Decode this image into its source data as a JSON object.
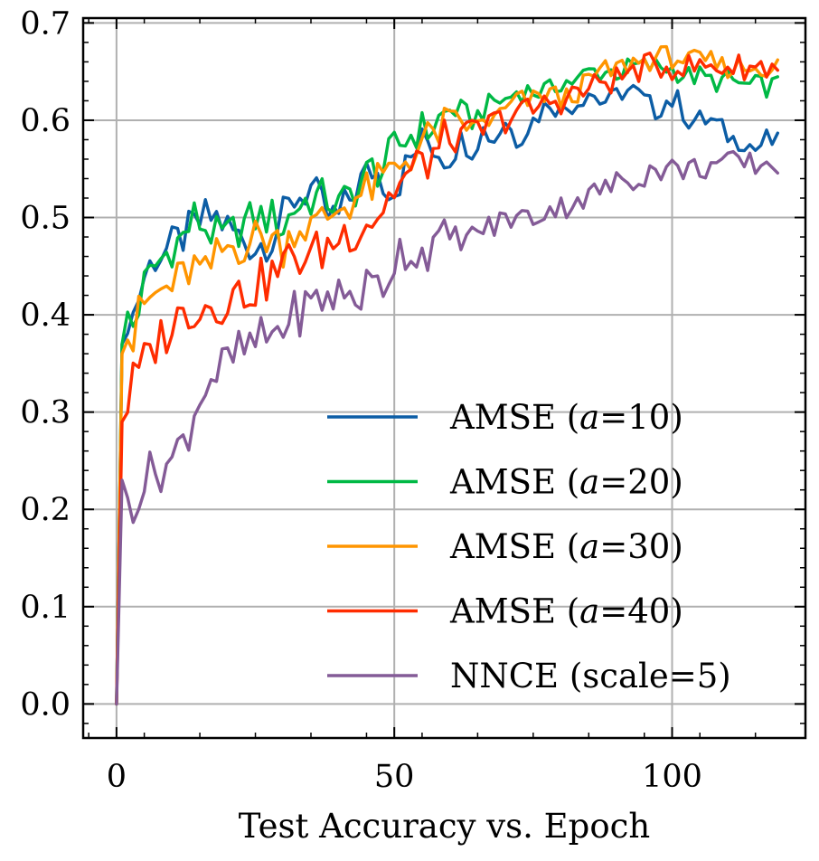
{
  "chart_data": {
    "type": "line",
    "title": "",
    "xlabel": "Test Accuracy vs. Epoch",
    "ylabel": "",
    "xlim": [
      -6,
      124
    ],
    "ylim": [
      -0.035,
      0.705
    ],
    "x_ticks": [
      0,
      50,
      100
    ],
    "x_tick_labels": [
      "0",
      "50",
      "100"
    ],
    "y_ticks": [
      0.0,
      0.1,
      0.2,
      0.3,
      0.4,
      0.5,
      0.6,
      0.7
    ],
    "y_tick_labels": [
      "0.0",
      "0.1",
      "0.2",
      "0.3",
      "0.4",
      "0.5",
      "0.6",
      "0.7"
    ],
    "grid": true,
    "legend_position": "lower-right",
    "series": [
      {
        "name": "AMSE (a=10)",
        "legend_prefix": "AMSE (",
        "legend_var": "a",
        "legend_suffix": "=10)",
        "color": "#0C5DA5",
        "anchors_x": [
          0,
          1,
          2,
          3,
          4,
          5,
          7,
          10,
          12,
          14,
          16,
          18,
          20,
          22,
          25,
          28,
          30,
          32,
          35,
          38,
          40,
          43,
          46,
          48,
          50,
          52,
          54,
          56,
          58,
          60,
          62,
          64,
          66,
          68,
          70,
          72,
          75,
          78,
          80,
          83,
          85,
          87,
          89,
          91,
          93,
          95,
          97,
          99,
          101,
          103,
          105,
          107,
          109,
          111,
          113,
          115,
          117,
          119
        ],
        "anchors_y": [
          0.0,
          0.37,
          0.4,
          0.4,
          0.42,
          0.44,
          0.46,
          0.47,
          0.48,
          0.49,
          0.5,
          0.5,
          0.49,
          0.48,
          0.47,
          0.48,
          0.5,
          0.52,
          0.53,
          0.5,
          0.5,
          0.53,
          0.55,
          0.54,
          0.53,
          0.55,
          0.57,
          0.58,
          0.57,
          0.56,
          0.58,
          0.57,
          0.59,
          0.58,
          0.6,
          0.58,
          0.6,
          0.62,
          0.61,
          0.62,
          0.63,
          0.62,
          0.62,
          0.63,
          0.63,
          0.62,
          0.61,
          0.62,
          0.62,
          0.6,
          0.6,
          0.6,
          0.59,
          0.58,
          0.58,
          0.57,
          0.58,
          0.575
        ],
        "amp": 0.012
      },
      {
        "name": "AMSE (a=20)",
        "legend_prefix": "AMSE (",
        "legend_var": "a",
        "legend_suffix": "=20)",
        "color": "#00B945",
        "anchors_x": [
          0,
          1,
          2,
          3,
          4,
          5,
          7,
          10,
          12,
          14,
          16,
          18,
          20,
          22,
          25,
          28,
          30,
          32,
          35,
          38,
          40,
          43,
          46,
          48,
          50,
          52,
          54,
          56,
          58,
          60,
          62,
          64,
          66,
          68,
          70,
          72,
          75,
          78,
          80,
          83,
          85,
          87,
          89,
          91,
          93,
          95,
          97,
          99,
          101,
          103,
          105,
          107,
          109,
          111,
          113,
          115,
          117,
          119
        ],
        "anchors_y": [
          0.0,
          0.37,
          0.4,
          0.39,
          0.41,
          0.43,
          0.45,
          0.47,
          0.48,
          0.5,
          0.49,
          0.48,
          0.48,
          0.49,
          0.5,
          0.5,
          0.49,
          0.51,
          0.52,
          0.52,
          0.51,
          0.53,
          0.55,
          0.55,
          0.57,
          0.58,
          0.59,
          0.59,
          0.6,
          0.61,
          0.61,
          0.6,
          0.61,
          0.62,
          0.62,
          0.63,
          0.63,
          0.63,
          0.64,
          0.64,
          0.65,
          0.65,
          0.65,
          0.65,
          0.655,
          0.655,
          0.655,
          0.655,
          0.65,
          0.645,
          0.645,
          0.64,
          0.64,
          0.64,
          0.635,
          0.635,
          0.635,
          0.635
        ],
        "amp": 0.012
      },
      {
        "name": "AMSE (a=30)",
        "legend_prefix": "AMSE (",
        "legend_var": "a",
        "legend_suffix": "=30)",
        "color": "#FF9500",
        "anchors_x": [
          0,
          1,
          2,
          3,
          4,
          5,
          7,
          10,
          12,
          14,
          16,
          18,
          20,
          22,
          25,
          28,
          30,
          32,
          35,
          38,
          40,
          43,
          46,
          48,
          50,
          52,
          54,
          56,
          58,
          60,
          62,
          64,
          66,
          68,
          70,
          72,
          75,
          78,
          80,
          83,
          85,
          87,
          89,
          91,
          93,
          95,
          97,
          99,
          101,
          103,
          105,
          107,
          109,
          111,
          113,
          115,
          117,
          119
        ],
        "anchors_y": [
          0.0,
          0.36,
          0.38,
          0.37,
          0.4,
          0.41,
          0.42,
          0.43,
          0.44,
          0.45,
          0.44,
          0.46,
          0.47,
          0.47,
          0.48,
          0.48,
          0.47,
          0.49,
          0.49,
          0.5,
          0.51,
          0.52,
          0.53,
          0.54,
          0.55,
          0.56,
          0.57,
          0.58,
          0.59,
          0.6,
          0.6,
          0.59,
          0.6,
          0.6,
          0.61,
          0.62,
          0.62,
          0.63,
          0.62,
          0.63,
          0.64,
          0.65,
          0.65,
          0.655,
          0.66,
          0.66,
          0.665,
          0.665,
          0.665,
          0.66,
          0.66,
          0.66,
          0.655,
          0.655,
          0.655,
          0.655,
          0.655,
          0.655
        ],
        "amp": 0.012
      },
      {
        "name": "AMSE (a=40)",
        "legend_prefix": "AMSE (",
        "legend_var": "a",
        "legend_suffix": "=40)",
        "color": "#FF2C00",
        "anchors_x": [
          0,
          1,
          2,
          3,
          4,
          5,
          7,
          10,
          12,
          14,
          16,
          18,
          20,
          22,
          25,
          28,
          30,
          32,
          35,
          38,
          40,
          43,
          46,
          48,
          50,
          52,
          54,
          56,
          58,
          60,
          62,
          64,
          66,
          68,
          70,
          72,
          75,
          78,
          80,
          83,
          85,
          87,
          89,
          91,
          93,
          95,
          97,
          99,
          101,
          103,
          105,
          107,
          109,
          111,
          113,
          115,
          117,
          119
        ],
        "anchors_y": [
          0.0,
          0.29,
          0.31,
          0.33,
          0.34,
          0.35,
          0.37,
          0.39,
          0.4,
          0.41,
          0.41,
          0.41,
          0.42,
          0.42,
          0.43,
          0.44,
          0.45,
          0.46,
          0.46,
          0.47,
          0.48,
          0.49,
          0.5,
          0.51,
          0.53,
          0.54,
          0.55,
          0.56,
          0.57,
          0.58,
          0.58,
          0.59,
          0.59,
          0.6,
          0.6,
          0.61,
          0.61,
          0.62,
          0.62,
          0.63,
          0.63,
          0.64,
          0.64,
          0.645,
          0.65,
          0.655,
          0.655,
          0.655,
          0.655,
          0.655,
          0.655,
          0.655,
          0.655,
          0.655,
          0.655,
          0.655,
          0.655,
          0.655
        ],
        "amp": 0.014
      },
      {
        "name": "NNCE (scale=5)",
        "legend_prefix": "NNCE (scale=5)",
        "legend_var": "",
        "legend_suffix": "",
        "color": "#845B97",
        "anchors_x": [
          0,
          1,
          2,
          3,
          4,
          5,
          7,
          10,
          12,
          14,
          16,
          18,
          20,
          22,
          25,
          28,
          30,
          32,
          35,
          38,
          40,
          43,
          46,
          48,
          50,
          52,
          54,
          56,
          58,
          60,
          62,
          64,
          66,
          68,
          70,
          72,
          75,
          78,
          80,
          83,
          85,
          87,
          89,
          91,
          93,
          95,
          97,
          99,
          101,
          103,
          105,
          107,
          109,
          111,
          113,
          115,
          117,
          119
        ],
        "anchors_y": [
          0.0,
          0.23,
          0.21,
          0.21,
          0.22,
          0.23,
          0.24,
          0.25,
          0.27,
          0.3,
          0.33,
          0.34,
          0.35,
          0.36,
          0.37,
          0.38,
          0.39,
          0.4,
          0.41,
          0.42,
          0.42,
          0.42,
          0.43,
          0.43,
          0.46,
          0.47,
          0.46,
          0.47,
          0.47,
          0.48,
          0.48,
          0.48,
          0.49,
          0.49,
          0.5,
          0.5,
          0.5,
          0.51,
          0.51,
          0.52,
          0.52,
          0.53,
          0.53,
          0.54,
          0.54,
          0.545,
          0.55,
          0.55,
          0.55,
          0.55,
          0.55,
          0.555,
          0.555,
          0.555,
          0.555,
          0.555,
          0.555,
          0.555
        ],
        "amp": 0.014
      }
    ]
  }
}
